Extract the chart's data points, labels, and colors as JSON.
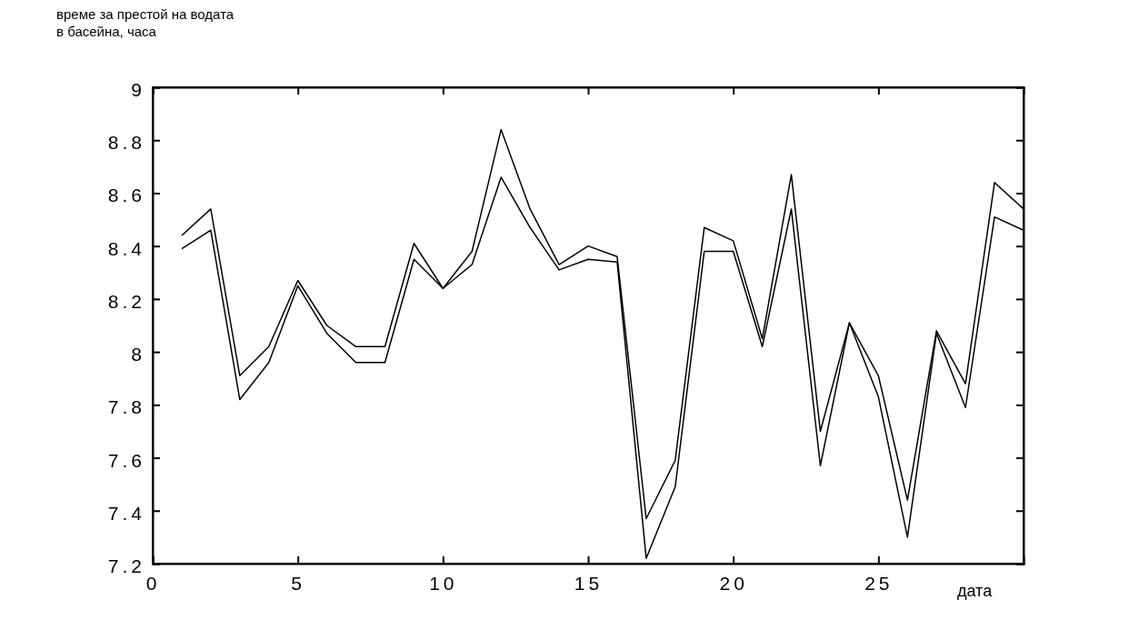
{
  "chart_data": {
    "type": "line",
    "xlabel": "дата",
    "ylabel": "време за престой на водата\nв басейна, часа",
    "x": [
      1,
      2,
      3,
      4,
      5,
      6,
      7,
      8,
      9,
      10,
      11,
      12,
      13,
      14,
      15,
      16,
      17,
      18,
      19,
      20,
      21,
      22,
      23,
      24,
      25,
      26,
      27,
      28,
      29,
      30
    ],
    "series": [
      {
        "color": "#000000",
        "values": [
          8.44,
          8.54,
          7.91,
          8.02,
          8.27,
          8.1,
          8.02,
          8.02,
          8.41,
          8.24,
          8.38,
          8.84,
          8.54,
          8.33,
          8.4,
          8.36,
          7.37,
          7.59,
          8.47,
          8.42,
          8.05,
          8.67,
          7.7,
          8.11,
          7.91,
          7.44,
          8.08,
          7.88,
          8.64,
          8.54
        ]
      },
      {
        "color": "#000000",
        "values": [
          8.39,
          8.46,
          7.82,
          7.96,
          8.25,
          8.07,
          7.96,
          7.96,
          8.35,
          8.24,
          8.33,
          8.66,
          8.47,
          8.31,
          8.35,
          8.34,
          7.22,
          7.49,
          8.38,
          8.38,
          8.02,
          8.54,
          7.57,
          8.11,
          7.83,
          7.3,
          8.07,
          7.79,
          8.51,
          8.46
        ]
      }
    ],
    "xlim": [
      0,
      30
    ],
    "xticks": [
      0,
      5,
      10,
      15,
      20,
      25
    ],
    "ylim": [
      7.2,
      9
    ],
    "yticks": [
      7.2,
      7.4,
      7.6,
      7.8,
      8,
      8.2,
      8.4,
      8.6,
      8.8,
      9
    ],
    "grid": false,
    "marker": "none",
    "line_style": "solid"
  }
}
